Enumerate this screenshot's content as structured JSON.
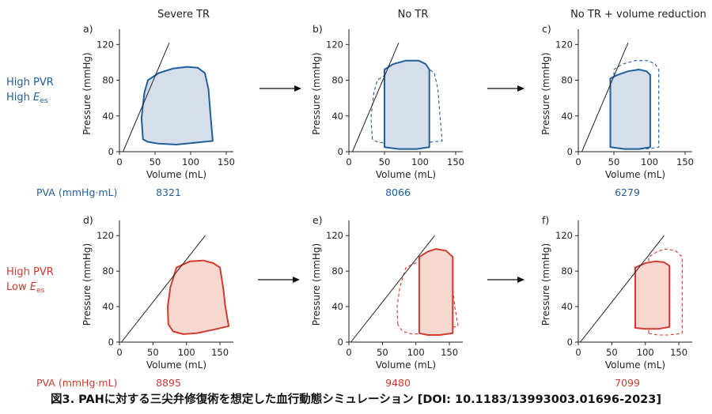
{
  "columns": [
    "Severe TR",
    "No TR",
    "No TR + volume reduction"
  ],
  "rows": [
    {
      "label_line1": "High PVR",
      "label_line2_prefix": "High ",
      "label_e": "E",
      "label_sub": "es",
      "color": "#1f5f9a",
      "fill": "#d6deeb"
    },
    {
      "label_line1": "High PVR",
      "label_line2_prefix": "Low ",
      "label_e": "E",
      "label_sub": "es",
      "color": "#d13a2c",
      "fill": "#f6d8d1"
    }
  ],
  "pva_label": "PVA (mmHg·mL)",
  "caption": "図3. PAHに対する三尖弁修復術を想定した血行動態シミュレーション [DOI: 10.1183/13993003.01696-2023]",
  "chart_data": [
    {
      "type": "line",
      "panel": "a)",
      "xlabel": "Volume (mL)",
      "ylabel": "Pressure (mmHg)",
      "xlim": [
        0,
        160
      ],
      "ylim": [
        0,
        130
      ],
      "xticks": [
        0,
        50,
        100,
        150
      ],
      "yticks": [
        0,
        40,
        80,
        120
      ],
      "pva": "8321",
      "ees": [
        [
          5,
          0
        ],
        [
          70,
          122
        ]
      ],
      "loop": [
        [
          33,
          14
        ],
        [
          31,
          38
        ],
        [
          35,
          66
        ],
        [
          40,
          80
        ],
        [
          55,
          88
        ],
        [
          75,
          93
        ],
        [
          95,
          95
        ],
        [
          110,
          94
        ],
        [
          120,
          88
        ],
        [
          125,
          70
        ],
        [
          128,
          40
        ],
        [
          131,
          12
        ],
        [
          105,
          10
        ],
        [
          80,
          8
        ],
        [
          55,
          9
        ],
        [
          40,
          11
        ],
        [
          33,
          14
        ]
      ],
      "previous_loop": []
    },
    {
      "type": "line",
      "panel": "b)",
      "xlabel": "Volume (mL)",
      "ylabel": "Pressure (mmHg)",
      "xlim": [
        0,
        160
      ],
      "ylim": [
        0,
        130
      ],
      "xticks": [
        0,
        50,
        100,
        150
      ],
      "yticks": [
        0,
        40,
        80,
        120
      ],
      "pva": "8066",
      "ees": [
        [
          5,
          0
        ],
        [
          70,
          122
        ]
      ],
      "loop": [
        [
          50,
          5
        ],
        [
          50,
          92
        ],
        [
          62,
          98
        ],
        [
          80,
          102
        ],
        [
          98,
          102
        ],
        [
          108,
          98
        ],
        [
          113,
          92
        ],
        [
          113,
          5
        ],
        [
          95,
          3
        ],
        [
          70,
          3
        ],
        [
          50,
          5
        ]
      ],
      "previous_loop": [
        [
          33,
          14
        ],
        [
          31,
          38
        ],
        [
          35,
          66
        ],
        [
          40,
          80
        ],
        [
          55,
          88
        ],
        [
          75,
          93
        ],
        [
          95,
          95
        ],
        [
          110,
          94
        ],
        [
          120,
          88
        ],
        [
          125,
          70
        ],
        [
          128,
          40
        ],
        [
          131,
          12
        ],
        [
          105,
          10
        ],
        [
          80,
          8
        ],
        [
          55,
          9
        ],
        [
          40,
          11
        ],
        [
          33,
          14
        ]
      ]
    },
    {
      "type": "line",
      "panel": "c)",
      "xlabel": "Volume (mL)",
      "ylabel": "Pressure (mmHg)",
      "xlim": [
        0,
        160
      ],
      "ylim": [
        0,
        130
      ],
      "xticks": [
        0,
        50,
        100,
        150
      ],
      "yticks": [
        0,
        40,
        80,
        120
      ],
      "pva": "6279",
      "ees": [
        [
          5,
          0
        ],
        [
          70,
          122
        ]
      ],
      "loop": [
        [
          45,
          5
        ],
        [
          45,
          82
        ],
        [
          55,
          86
        ],
        [
          70,
          90
        ],
        [
          85,
          92
        ],
        [
          96,
          90
        ],
        [
          101,
          86
        ],
        [
          101,
          5
        ],
        [
          85,
          3
        ],
        [
          65,
          3
        ],
        [
          45,
          5
        ]
      ],
      "previous_loop": [
        [
          50,
          5
        ],
        [
          50,
          92
        ],
        [
          62,
          98
        ],
        [
          80,
          102
        ],
        [
          98,
          102
        ],
        [
          108,
          98
        ],
        [
          113,
          92
        ],
        [
          113,
          5
        ],
        [
          95,
          3
        ],
        [
          70,
          3
        ],
        [
          50,
          5
        ]
      ]
    },
    {
      "type": "line",
      "panel": "d)",
      "xlabel": "Volume (mL)",
      "ylabel": "Pressure (mmHg)",
      "xlim": [
        0,
        170
      ],
      "ylim": [
        0,
        130
      ],
      "xticks": [
        0,
        50,
        100,
        150
      ],
      "yticks": [
        0,
        40,
        80,
        120
      ],
      "pva": "8895",
      "ees": [
        [
          3,
          0
        ],
        [
          128,
          120
        ]
      ],
      "loop": [
        [
          73,
          20
        ],
        [
          72,
          40
        ],
        [
          76,
          62
        ],
        [
          85,
          84
        ],
        [
          105,
          91
        ],
        [
          125,
          92
        ],
        [
          140,
          89
        ],
        [
          150,
          84
        ],
        [
          155,
          60
        ],
        [
          158,
          40
        ],
        [
          163,
          18
        ],
        [
          140,
          14
        ],
        [
          115,
          10
        ],
        [
          95,
          9
        ],
        [
          80,
          12
        ],
        [
          73,
          20
        ]
      ],
      "previous_loop": []
    },
    {
      "type": "line",
      "panel": "e)",
      "xlabel": "Volume (mL)",
      "ylabel": "Pressure (mmHg)",
      "xlim": [
        0,
        170
      ],
      "ylim": [
        0,
        130
      ],
      "xticks": [
        0,
        50,
        100,
        150
      ],
      "yticks": [
        0,
        40,
        80,
        120
      ],
      "pva": "9480",
      "ees": [
        [
          3,
          0
        ],
        [
          128,
          120
        ]
      ],
      "loop": [
        [
          105,
          10
        ],
        [
          105,
          96
        ],
        [
          118,
          102
        ],
        [
          130,
          105
        ],
        [
          145,
          103
        ],
        [
          155,
          96
        ],
        [
          155,
          10
        ],
        [
          135,
          8
        ],
        [
          118,
          8
        ],
        [
          105,
          10
        ]
      ],
      "previous_loop": [
        [
          73,
          20
        ],
        [
          72,
          40
        ],
        [
          76,
          62
        ],
        [
          85,
          84
        ],
        [
          105,
          91
        ],
        [
          125,
          92
        ],
        [
          140,
          89
        ],
        [
          150,
          84
        ],
        [
          155,
          60
        ],
        [
          158,
          40
        ],
        [
          163,
          18
        ],
        [
          140,
          14
        ],
        [
          115,
          10
        ],
        [
          95,
          9
        ],
        [
          80,
          12
        ],
        [
          73,
          20
        ]
      ]
    },
    {
      "type": "line",
      "panel": "f)",
      "xlabel": "Volume (mL)",
      "ylabel": "Pressure (mmHg)",
      "xlim": [
        0,
        170
      ],
      "ylim": [
        0,
        130
      ],
      "xticks": [
        0,
        50,
        100,
        150
      ],
      "yticks": [
        0,
        40,
        80,
        120
      ],
      "pva": "7099",
      "ees": [
        [
          3,
          0
        ],
        [
          128,
          120
        ]
      ],
      "loop": [
        [
          85,
          16
        ],
        [
          85,
          84
        ],
        [
          100,
          89
        ],
        [
          115,
          91
        ],
        [
          128,
          90
        ],
        [
          136,
          86
        ],
        [
          136,
          17
        ],
        [
          120,
          15
        ],
        [
          100,
          15
        ],
        [
          85,
          16
        ]
      ],
      "previous_loop": [
        [
          105,
          10
        ],
        [
          105,
          96
        ],
        [
          118,
          102
        ],
        [
          130,
          105
        ],
        [
          145,
          103
        ],
        [
          155,
          96
        ],
        [
          155,
          10
        ],
        [
          135,
          8
        ],
        [
          118,
          8
        ],
        [
          105,
          10
        ]
      ]
    }
  ]
}
